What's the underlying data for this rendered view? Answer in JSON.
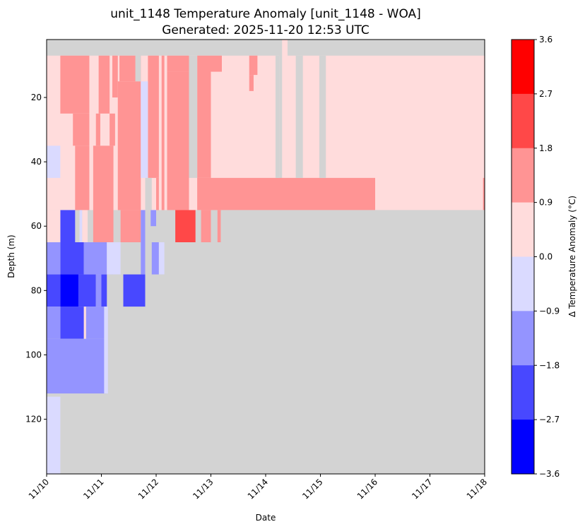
{
  "chart_data": {
    "type": "heatmap",
    "title_line1": "unit_1148 Temperature Anomaly [unit_1148 - WOA]",
    "title_line2": "Generated: 2025-11-20 12:53 UTC",
    "xlabel": "Date",
    "ylabel": "Depth (m)",
    "colorbar_label": "Δ Temperature Anomaly (°C)",
    "x_ticks": [
      "11/10",
      "11/11",
      "11/12",
      "11/13",
      "11/14",
      "11/15",
      "11/16",
      "11/17",
      "11/18"
    ],
    "x_range_days": [
      0,
      8.2
    ],
    "y_ticks": [
      20,
      40,
      60,
      80,
      100,
      120
    ],
    "y_range_m": [
      2,
      137
    ],
    "y_inverted": true,
    "colorbar_ticks": [
      "3.6",
      "2.7",
      "1.8",
      "0.9",
      "0.0",
      "−0.9",
      "−1.8",
      "−2.7",
      "−3.6"
    ],
    "colorbar_bounds": [
      -3.6,
      -2.7,
      -1.8,
      -0.9,
      0.0,
      0.9,
      1.8,
      2.7,
      3.6
    ],
    "colorbar_colors": [
      "#0000ff",
      "#4848ff",
      "#9494ff",
      "#dadaff",
      "#ffdcdc",
      "#ff9494",
      "#ff4848",
      "#ff0000"
    ],
    "no_data_color": "#d3d3d3",
    "cells": [
      {
        "x0": 0,
        "x1": 8.2,
        "d0": 2,
        "d1": 137,
        "v": null
      },
      {
        "x0": 0,
        "x1": 4.25,
        "d0": 7,
        "d1": 55,
        "v": 0.45
      },
      {
        "x0": 4.4,
        "x1": 8.2,
        "d0": 7,
        "d1": 55,
        "v": 0.45
      },
      {
        "x0": 4.3,
        "x1": 4.4,
        "d0": 2,
        "d1": 55,
        "v": 0.45
      },
      {
        "x0": 0.25,
        "x1": 0.78,
        "d0": 7,
        "d1": 25,
        "v": 1.35
      },
      {
        "x0": 0.48,
        "x1": 0.78,
        "d0": 25,
        "d1": 35,
        "v": 1.35
      },
      {
        "x0": 0.52,
        "x1": 0.78,
        "d0": 35,
        "d1": 55,
        "v": 1.35
      },
      {
        "x0": 0.85,
        "x1": 1.22,
        "d0": 35,
        "d1": 65,
        "v": 1.35
      },
      {
        "x0": 0.95,
        "x1": 1.15,
        "d0": 7,
        "d1": 25,
        "v": 1.35
      },
      {
        "x0": 0.9,
        "x1": 0.98,
        "d0": 25,
        "d1": 35,
        "v": 1.35
      },
      {
        "x0": 1.2,
        "x1": 1.3,
        "d0": 7,
        "d1": 20,
        "v": 1.35
      },
      {
        "x0": 1.15,
        "x1": 1.25,
        "d0": 25,
        "d1": 35,
        "v": 1.35
      },
      {
        "x0": 1.3,
        "x1": 1.72,
        "d0": 15,
        "d1": 55,
        "v": 1.35
      },
      {
        "x0": 1.35,
        "x1": 1.72,
        "d0": 55,
        "d1": 65,
        "v": 1.35
      },
      {
        "x0": 1.33,
        "x1": 1.72,
        "d0": 7,
        "d1": 15,
        "v": 1.35
      },
      {
        "x0": 1.85,
        "x1": 2.05,
        "d0": 7,
        "d1": 45,
        "v": 1.35
      },
      {
        "x0": 2.0,
        "x1": 2.05,
        "d0": 45,
        "d1": 55,
        "v": 1.35
      },
      {
        "x0": 2.1,
        "x1": 2.15,
        "d0": 7,
        "d1": 55,
        "v": 1.35
      },
      {
        "x0": 2.2,
        "x1": 2.6,
        "d0": 7,
        "d1": 12,
        "v": 1.35
      },
      {
        "x0": 2.2,
        "x1": 2.6,
        "d0": 12,
        "d1": 55,
        "v": 1.35
      },
      {
        "x0": 2.45,
        "x1": 2.55,
        "d0": 55,
        "d1": 65,
        "v": 1.35
      },
      {
        "x0": 2.75,
        "x1": 3.0,
        "d0": 7,
        "d1": 45,
        "v": 1.35
      },
      {
        "x0": 3.0,
        "x1": 3.2,
        "d0": 7,
        "d1": 12,
        "v": 1.35
      },
      {
        "x0": 2.75,
        "x1": 6.0,
        "d0": 45,
        "d1": 55,
        "v": 1.35
      },
      {
        "x0": 7.97,
        "x1": 8.2,
        "d0": 45,
        "d1": 55,
        "v": 1.35
      },
      {
        "x0": 2.82,
        "x1": 3.0,
        "d0": 55,
        "d1": 65,
        "v": 1.35
      },
      {
        "x0": 3.12,
        "x1": 3.18,
        "d0": 55,
        "d1": 65,
        "v": 1.35
      },
      {
        "x0": 3.7,
        "x1": 3.85,
        "d0": 7,
        "d1": 13,
        "v": 1.35
      },
      {
        "x0": 3.7,
        "x1": 3.78,
        "d0": 13,
        "d1": 18,
        "v": 1.35
      },
      {
        "x0": 2.35,
        "x1": 2.72,
        "d0": 55,
        "d1": 65,
        "v": 2.25
      },
      {
        "x0": 0.25,
        "x1": 0.52,
        "d0": 55,
        "d1": 65,
        "v": -2.25
      },
      {
        "x0": 0.25,
        "x1": 0.68,
        "d0": 65,
        "d1": 75,
        "v": -2.25
      },
      {
        "x0": 0.58,
        "x1": 0.9,
        "d0": 75,
        "d1": 85,
        "v": -2.25
      },
      {
        "x0": 0.25,
        "x1": 0.68,
        "d0": 85,
        "d1": 95,
        "v": -2.25
      },
      {
        "x0": 1.0,
        "x1": 1.1,
        "d0": 75,
        "d1": 85,
        "v": -2.25
      },
      {
        "x0": 1.4,
        "x1": 1.8,
        "d0": 75,
        "d1": 85,
        "v": -2.25
      },
      {
        "x0": 0.25,
        "x1": 0.58,
        "d0": 75,
        "d1": 85,
        "v": -3.15
      },
      {
        "x0": 0,
        "x1": 0.25,
        "d0": 65,
        "d1": 75,
        "v": -1.35
      },
      {
        "x0": 0,
        "x1": 0.25,
        "d0": 75,
        "d1": 85,
        "v": -2.25
      },
      {
        "x0": 0,
        "x1": 0.25,
        "d0": 85,
        "d1": 95,
        "v": -1.35
      },
      {
        "x0": 0,
        "x1": 1.1,
        "d0": 95,
        "d1": 112,
        "v": -1.35
      },
      {
        "x0": 0.68,
        "x1": 1.1,
        "d0": 65,
        "d1": 75,
        "v": -1.35
      },
      {
        "x0": 0.9,
        "x1": 1.0,
        "d0": 75,
        "d1": 85,
        "v": -1.35
      },
      {
        "x0": 0.68,
        "x1": 1.1,
        "d0": 85,
        "d1": 95,
        "v": -1.35
      },
      {
        "x0": 1.72,
        "x1": 1.8,
        "d0": 55,
        "d1": 75,
        "v": -1.35
      },
      {
        "x0": 1.92,
        "x1": 2.05,
        "d0": 65,
        "d1": 75,
        "v": -1.35
      },
      {
        "x0": 1.9,
        "x1": 2.0,
        "d0": 55,
        "d1": 60,
        "v": -1.35
      },
      {
        "x0": 1.18,
        "x1": 1.22,
        "d0": 65,
        "d1": 75,
        "v": -1.35
      },
      {
        "x0": 0,
        "x1": 0.25,
        "d0": 35,
        "d1": 45,
        "v": -0.45
      },
      {
        "x0": 0,
        "x1": 0.25,
        "d0": 113,
        "d1": 137,
        "v": -0.45
      },
      {
        "x0": 1.72,
        "x1": 1.85,
        "d0": 15,
        "d1": 45,
        "v": -0.45
      },
      {
        "x0": 1.1,
        "x1": 1.35,
        "d0": 65,
        "d1": 75,
        "v": -0.45
      },
      {
        "x0": 1.05,
        "x1": 1.12,
        "d0": 85,
        "d1": 112,
        "v": -0.45
      },
      {
        "x0": 2.05,
        "x1": 2.15,
        "d0": 65,
        "d1": 75,
        "v": -0.45
      },
      {
        "x0": 0.6,
        "x1": 0.65,
        "d0": 55,
        "d1": 65,
        "v": -0.45
      },
      {
        "x0": 0.65,
        "x1": 0.75,
        "d0": 55,
        "d1": 65,
        "v": 0.45
      },
      {
        "x0": 0.68,
        "x1": 0.72,
        "d0": 85,
        "d1": 95,
        "v": 0.45
      },
      {
        "x0": 0,
        "x1": 0.25,
        "d0": 55,
        "d1": 65,
        "v": 0.45
      },
      {
        "x0": 1.62,
        "x1": 1.72,
        "d0": 2,
        "d1": 15,
        "v": null
      },
      {
        "x0": 2.6,
        "x1": 2.75,
        "d0": 7,
        "d1": 45,
        "v": null
      },
      {
        "x0": 4.18,
        "x1": 4.25,
        "d0": 7,
        "d1": 45,
        "v": null
      },
      {
        "x0": 4.55,
        "x1": 4.68,
        "d0": 7,
        "d1": 45,
        "v": null
      },
      {
        "x0": 4.98,
        "x1": 5.1,
        "d0": 7,
        "d1": 45,
        "v": null
      },
      {
        "x0": 1.8,
        "x1": 1.92,
        "d0": 45,
        "d1": 55,
        "v": null
      },
      {
        "x0": 3.2,
        "x1": 8.2,
        "d0": 55,
        "d1": 65,
        "v": null
      },
      {
        "x0": 2.72,
        "x1": 2.82,
        "d0": 55,
        "d1": 65,
        "v": null
      },
      {
        "x0": 0.75,
        "x1": 0.8,
        "d0": 55,
        "d1": 65,
        "v": null
      }
    ]
  }
}
